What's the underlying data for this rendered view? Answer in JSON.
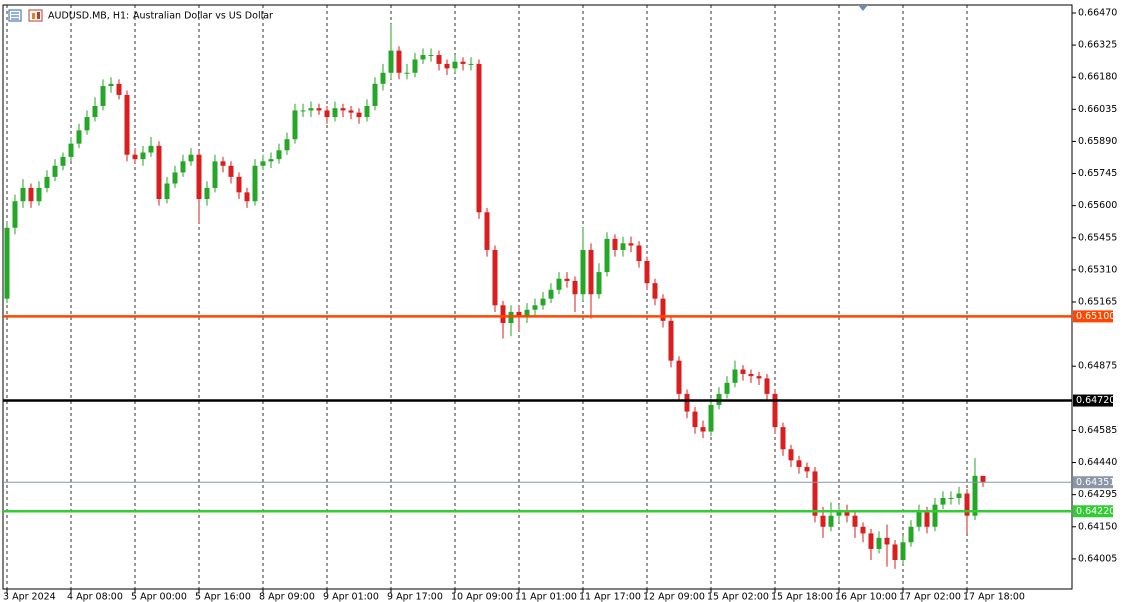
{
  "chart_data": {
    "type": "candlestick",
    "symbol": "AUDUSD.MB, H1:",
    "title": "Australian Dollar vs US Dollar",
    "up_color": "#26a626",
    "down_color": "#d81e1e",
    "grid": "vertical",
    "ylim": [
      0.63869,
      0.66506
    ],
    "yticks": [
      {
        "value": 0.6647,
        "label": "0.66470"
      },
      {
        "value": 0.66325,
        "label": "0.66325"
      },
      {
        "value": 0.6618,
        "label": "0.66180"
      },
      {
        "value": 0.66035,
        "label": "0.66035"
      },
      {
        "value": 0.6589,
        "label": "0.65890"
      },
      {
        "value": 0.65745,
        "label": "0.65745"
      },
      {
        "value": 0.656,
        "label": "0.65600"
      },
      {
        "value": 0.65455,
        "label": "0.65455"
      },
      {
        "value": 0.6531,
        "label": "0.65310"
      },
      {
        "value": 0.65165,
        "label": "0.65165"
      },
      {
        "value": 0.64875,
        "label": "0.64875"
      },
      {
        "value": 0.64585,
        "label": "0.64585"
      },
      {
        "value": 0.6444,
        "label": "0.64440"
      },
      {
        "value": 0.64295,
        "label": "0.64295"
      },
      {
        "value": 0.6415,
        "label": "0.64150"
      },
      {
        "value": 0.64005,
        "label": "0.64005"
      }
    ],
    "xticks": [
      {
        "value": 0,
        "label": "3 Apr 2024"
      },
      {
        "value": 8,
        "label": "4 Apr 08:00"
      },
      {
        "value": 16,
        "label": "5 Apr 00:00"
      },
      {
        "value": 24,
        "label": "5 Apr 16:00"
      },
      {
        "value": 32,
        "label": "8 Apr 09:00"
      },
      {
        "value": 40,
        "label": "9 Apr 01:00"
      },
      {
        "value": 48,
        "label": "9 Apr 17:00"
      },
      {
        "value": 56,
        "label": "10 Apr 09:00"
      },
      {
        "value": 64,
        "label": "11 Apr 01:00"
      },
      {
        "value": 72,
        "label": "11 Apr 17:00"
      },
      {
        "value": 80,
        "label": "12 Apr 09:00"
      },
      {
        "value": 88,
        "label": "15 Apr 02:00"
      },
      {
        "value": 96,
        "label": "15 Apr 18:00"
      },
      {
        "value": 104,
        "label": "16 Apr 10:00"
      },
      {
        "value": 112,
        "label": "17 Apr 02:00"
      },
      {
        "value": 120,
        "label": "17 Apr 18:00"
      }
    ],
    "hlines": [
      {
        "value": 0.651,
        "label": "0.65100",
        "color": "#ff4500"
      },
      {
        "value": 0.6472,
        "label": "0.64720",
        "color": "#000000"
      },
      {
        "value": 0.64351,
        "label": "0.64351",
        "color": "#8a96a8"
      },
      {
        "value": 0.6422,
        "label": "0.64220",
        "color": "#32cd32"
      }
    ],
    "open": [
      0.6518,
      0.655,
      0.6562,
      0.6568,
      0.6562,
      0.6568,
      0.6573,
      0.6578,
      0.6582,
      0.6588,
      0.6594,
      0.66,
      0.6605,
      0.6614,
      0.6615,
      0.661,
      0.6583,
      0.6581,
      0.6584,
      0.6587,
      0.6563,
      0.657,
      0.6575,
      0.658,
      0.6583,
      0.6563,
      0.6568,
      0.658,
      0.6578,
      0.6573,
      0.6566,
      0.6562,
      0.6578,
      0.658,
      0.6581,
      0.6585,
      0.659,
      0.6603,
      0.6603,
      0.6604,
      0.6603,
      0.66,
      0.6604,
      0.6603,
      0.6602,
      0.66,
      0.6605,
      0.6615,
      0.662,
      0.663,
      0.662,
      0.662,
      0.6626,
      0.6628,
      0.6628,
      0.6624,
      0.6622,
      0.6625,
      0.6624,
      0.6624,
      0.6557,
      0.654,
      0.6515,
      0.6507,
      0.6512,
      0.651,
      0.6513,
      0.6515,
      0.6518,
      0.6522,
      0.6527,
      0.6526,
      0.652,
      0.654,
      0.652,
      0.653,
      0.6545,
      0.654,
      0.6543,
      0.6542,
      0.6535,
      0.6525,
      0.6518,
      0.6508,
      0.649,
      0.6475,
      0.6467,
      0.646,
      0.6458,
      0.647,
      0.6475,
      0.648,
      0.6486,
      0.6484,
      0.6483,
      0.6482,
      0.6475,
      0.646,
      0.645,
      0.6445,
      0.6442,
      0.644,
      0.642,
      0.6415,
      0.642,
      0.6422,
      0.642,
      0.6415,
      0.6412,
      0.6405,
      0.641,
      0.6407,
      0.64,
      0.6408,
      0.6415,
      0.6422,
      0.6415,
      0.6425,
      0.6428,
      0.6428,
      0.643,
      0.642,
      0.6438
    ],
    "high": [
      0.6553,
      0.6565,
      0.6572,
      0.657,
      0.6571,
      0.6576,
      0.6581,
      0.6584,
      0.6591,
      0.6597,
      0.6603,
      0.6609,
      0.6617,
      0.6618,
      0.6617,
      0.6612,
      0.6586,
      0.6587,
      0.6591,
      0.6589,
      0.6573,
      0.6578,
      0.6583,
      0.6586,
      0.6585,
      0.6571,
      0.6583,
      0.6582,
      0.658,
      0.6575,
      0.6568,
      0.6581,
      0.6583,
      0.6584,
      0.6588,
      0.6593,
      0.6606,
      0.6606,
      0.6607,
      0.6606,
      0.6605,
      0.6607,
      0.6606,
      0.6605,
      0.6604,
      0.6608,
      0.6618,
      0.6624,
      0.6642,
      0.6632,
      0.6624,
      0.6629,
      0.6631,
      0.6631,
      0.663,
      0.6626,
      0.6628,
      0.6627,
      0.6627,
      0.6626,
      0.6559,
      0.6542,
      0.6517,
      0.6515,
      0.6515,
      0.6516,
      0.6518,
      0.6521,
      0.6525,
      0.653,
      0.653,
      0.6528,
      0.655,
      0.6543,
      0.6534,
      0.6548,
      0.6547,
      0.6546,
      0.6546,
      0.6544,
      0.6537,
      0.6527,
      0.652,
      0.651,
      0.6492,
      0.6477,
      0.6469,
      0.6463,
      0.6473,
      0.6478,
      0.6483,
      0.649,
      0.6488,
      0.6486,
      0.6485,
      0.6484,
      0.6477,
      0.6462,
      0.6452,
      0.6447,
      0.6444,
      0.6442,
      0.6424,
      0.6426,
      0.6425,
      0.6425,
      0.6422,
      0.6417,
      0.6414,
      0.6413,
      0.6416,
      0.6409,
      0.6411,
      0.6418,
      0.6425,
      0.6424,
      0.6428,
      0.6431,
      0.6431,
      0.6433,
      0.6432,
      0.6446,
      0.6437
    ],
    "low": [
      0.6516,
      0.6547,
      0.6559,
      0.6559,
      0.656,
      0.6566,
      0.6571,
      0.6576,
      0.658,
      0.6586,
      0.6592,
      0.6598,
      0.6603,
      0.6611,
      0.6608,
      0.658,
      0.6579,
      0.6578,
      0.6582,
      0.656,
      0.6561,
      0.6568,
      0.6573,
      0.6578,
      0.6552,
      0.656,
      0.6566,
      0.6575,
      0.657,
      0.6563,
      0.6559,
      0.656,
      0.6576,
      0.6577,
      0.6579,
      0.6583,
      0.6588,
      0.66,
      0.66,
      0.6601,
      0.6597,
      0.6598,
      0.66,
      0.6599,
      0.6597,
      0.6598,
      0.6603,
      0.6612,
      0.6617,
      0.6617,
      0.6617,
      0.6618,
      0.6624,
      0.6625,
      0.6621,
      0.6619,
      0.662,
      0.6621,
      0.6621,
      0.6554,
      0.6537,
      0.6512,
      0.65,
      0.6501,
      0.6503,
      0.6507,
      0.651,
      0.6513,
      0.6516,
      0.652,
      0.6523,
      0.6512,
      0.6517,
      0.6509,
      0.6518,
      0.6528,
      0.6537,
      0.6537,
      0.6539,
      0.6532,
      0.6522,
      0.6515,
      0.6505,
      0.6487,
      0.6472,
      0.6464,
      0.6457,
      0.6455,
      0.6456,
      0.6468,
      0.6473,
      0.6478,
      0.6481,
      0.648,
      0.6479,
      0.6472,
      0.6457,
      0.6447,
      0.6442,
      0.6439,
      0.6437,
      0.6417,
      0.641,
      0.6413,
      0.6417,
      0.6417,
      0.641,
      0.6408,
      0.64,
      0.6403,
      0.6397,
      0.6396,
      0.6398,
      0.6406,
      0.6413,
      0.6412,
      0.6413,
      0.6423,
      0.6425,
      0.6425,
      0.6412,
      0.6418,
      0.6433
    ],
    "close": [
      0.655,
      0.6562,
      0.6568,
      0.6562,
      0.6568,
      0.6573,
      0.6578,
      0.6582,
      0.6588,
      0.6594,
      0.66,
      0.6605,
      0.6614,
      0.6615,
      0.661,
      0.6583,
      0.6581,
      0.6584,
      0.6587,
      0.6563,
      0.657,
      0.6575,
      0.658,
      0.6583,
      0.6563,
      0.6568,
      0.658,
      0.6578,
      0.6573,
      0.6566,
      0.6562,
      0.6578,
      0.658,
      0.6581,
      0.6585,
      0.659,
      0.6603,
      0.6603,
      0.6604,
      0.6603,
      0.66,
      0.6604,
      0.6603,
      0.6602,
      0.66,
      0.6605,
      0.6615,
      0.662,
      0.663,
      0.662,
      0.662,
      0.6626,
      0.6628,
      0.6628,
      0.6624,
      0.6622,
      0.6625,
      0.6624,
      0.6624,
      0.6557,
      0.654,
      0.6515,
      0.6507,
      0.6512,
      0.651,
      0.6513,
      0.6515,
      0.6518,
      0.6522,
      0.6527,
      0.6526,
      0.652,
      0.654,
      0.652,
      0.653,
      0.6545,
      0.654,
      0.6543,
      0.6542,
      0.6535,
      0.6525,
      0.6518,
      0.6508,
      0.649,
      0.6475,
      0.6467,
      0.646,
      0.6458,
      0.647,
      0.6475,
      0.648,
      0.6486,
      0.6484,
      0.6483,
      0.6482,
      0.6475,
      0.646,
      0.645,
      0.6445,
      0.6442,
      0.644,
      0.642,
      0.6415,
      0.642,
      0.6422,
      0.642,
      0.6415,
      0.6412,
      0.6405,
      0.641,
      0.6407,
      0.64,
      0.6408,
      0.6415,
      0.6422,
      0.6415,
      0.6425,
      0.6428,
      0.6428,
      0.643,
      0.642,
      0.6438,
      0.6435
    ]
  }
}
